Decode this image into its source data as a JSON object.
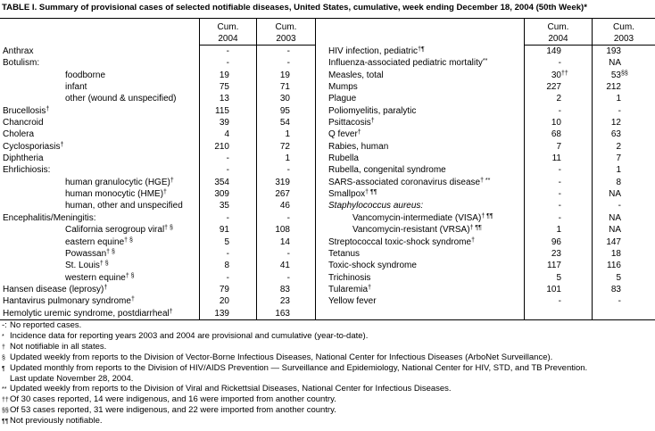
{
  "title": "TABLE I. Summary of provisional cases of selected notifiable diseases, United States, cumulative, week ending December 18, 2004 (50th Week)*",
  "header": {
    "cum": "Cum.",
    "y2004": "2004",
    "y2003": "2003"
  },
  "table": {
    "left_rows": [
      {
        "name": "Anthrax",
        "v04": "-",
        "v03": "-"
      },
      {
        "name": "Botulism:",
        "v04": "-",
        "v03": "-"
      },
      {
        "name": "foodborne",
        "indent": 1,
        "v04": "19",
        "v03": "19"
      },
      {
        "name": "infant",
        "indent": 1,
        "v04": "75",
        "v03": "71"
      },
      {
        "name": "other (wound & unspecified)",
        "indent": 1,
        "v04": "13",
        "v03": "30"
      },
      {
        "name": "Brucellosis",
        "sup": "†",
        "v04": "115",
        "v03": "95"
      },
      {
        "name": "Chancroid",
        "v04": "39",
        "v03": "54"
      },
      {
        "name": "Cholera",
        "v04": "4",
        "v03": "1"
      },
      {
        "name": "Cyclosporiasis",
        "sup": "†",
        "v04": "210",
        "v03": "72"
      },
      {
        "name": "Diphtheria",
        "v04": "-",
        "v03": "1"
      },
      {
        "name": "Ehrlichiosis:",
        "v04": "-",
        "v03": "-"
      },
      {
        "name": "human granulocytic (HGE)",
        "sup": "†",
        "indent": 1,
        "v04": "354",
        "v03": "319"
      },
      {
        "name": "human monocytic (HME)",
        "sup": "†",
        "indent": 1,
        "v04": "309",
        "v03": "267"
      },
      {
        "name": "human, other and unspecified",
        "indent": 1,
        "v04": "35",
        "v03": "46"
      },
      {
        "name": "Encephalitis/Meningitis:",
        "v04": "-",
        "v03": "-"
      },
      {
        "name": "California serogroup viral",
        "sup": "† §",
        "indent": 1,
        "v04": "91",
        "v03": "108"
      },
      {
        "name": "eastern equine",
        "sup": "† §",
        "indent": 1,
        "v04": "5",
        "v03": "14"
      },
      {
        "name": "Powassan",
        "sup": "† §",
        "indent": 1,
        "v04": "-",
        "v03": "-"
      },
      {
        "name": "St. Louis",
        "sup": "† §",
        "indent": 1,
        "v04": "8",
        "v03": "41"
      },
      {
        "name": "western equine",
        "sup": "† §",
        "indent": 1,
        "v04": "-",
        "v03": "-"
      },
      {
        "name": "Hansen disease (leprosy)",
        "sup": "†",
        "v04": "79",
        "v03": "83"
      },
      {
        "name": "Hantavirus pulmonary syndrome",
        "sup": "†",
        "v04": "20",
        "v03": "23"
      },
      {
        "name": "Hemolytic uremic syndrome, postdiarrheal",
        "sup": "†",
        "v04": "139",
        "v03": "163"
      }
    ],
    "right_rows": [
      {
        "name": "HIV infection, pediatric",
        "sup": "†¶",
        "v04": "149",
        "v03": "193"
      },
      {
        "name": "Influenza-associated pediatric mortality",
        "sup": "**",
        "v04": "-",
        "v03": "NA"
      },
      {
        "name": "Measles, total",
        "v04": "30",
        "v04s": "††",
        "v03": "53",
        "v03s": "§§"
      },
      {
        "name": "Mumps",
        "v04": "227",
        "v03": "212"
      },
      {
        "name": "Plague",
        "v04": "2",
        "v03": "1"
      },
      {
        "name": "Poliomyelitis, paralytic",
        "v04": "-",
        "v03": "-"
      },
      {
        "name": "Psittacosis",
        "sup": "†",
        "v04": "10",
        "v03": "12"
      },
      {
        "name": "Q fever",
        "sup": "†",
        "v04": "68",
        "v03": "63"
      },
      {
        "name": "Rabies, human",
        "v04": "7",
        "v03": "2"
      },
      {
        "name": "Rubella",
        "v04": "11",
        "v03": "7"
      },
      {
        "name": "Rubella, congenital syndrome",
        "v04": "-",
        "v03": "1"
      },
      {
        "name": "SARS-associated coronavirus disease",
        "sup": "† **",
        "v04": "-",
        "v03": "8"
      },
      {
        "name": "Smallpox",
        "sup": "† ¶¶",
        "v04": "-",
        "v03": "NA"
      },
      {
        "name": "Staphylococcus aureus:",
        "italic": true,
        "v04": "-",
        "v03": "-"
      },
      {
        "name": "Vancomycin-intermediate (VISA)",
        "sup": "† ¶¶",
        "indent": 1,
        "v04": "-",
        "v03": "NA"
      },
      {
        "name": "Vancomycin-resistant (VRSA)",
        "sup": "† ¶¶",
        "indent": 1,
        "v04": "1",
        "v03": "NA"
      },
      {
        "name": "Streptococcal toxic-shock syndrome",
        "sup": "†",
        "v04": "96",
        "v03": "147"
      },
      {
        "name": "Tetanus",
        "v04": "23",
        "v03": "18"
      },
      {
        "name": "Toxic-shock syndrome",
        "v04": "117",
        "v03": "116"
      },
      {
        "name": "Trichinosis",
        "v04": "5",
        "v03": "5"
      },
      {
        "name": "Tularemia",
        "sup": "†",
        "v04": "101",
        "v03": "83"
      },
      {
        "name": "Yellow fever",
        "v04": "-",
        "v03": "-"
      },
      {
        "name": "",
        "v04": "",
        "v03": ""
      }
    ]
  },
  "footnotes": [
    {
      "sym": "-:",
      "raised": false,
      "text": "No reported cases."
    },
    {
      "sym": "*",
      "raised": true,
      "text": "Incidence data for reporting years 2003 and 2004 are provisional and cumulative (year-to-date)."
    },
    {
      "sym": "†",
      "raised": true,
      "text": "Not notifiable in all states."
    },
    {
      "sym": "§",
      "raised": true,
      "text": "Updated weekly from reports to the Division of Vector-Borne Infectious Diseases, National Center for Infectious Diseases (ArboNet Surveillance)."
    },
    {
      "sym": "¶",
      "raised": true,
      "text": "Updated monthly from reports to the Division of HIV/AIDS Prevention — Surveillance and Epidemiology, National Center for HIV, STD, and TB Prevention."
    },
    {
      "sym": "",
      "raised": false,
      "text": "Last update November 28, 2004."
    },
    {
      "sym": "**",
      "raised": true,
      "text": "Updated weekly from reports to the Division of Viral and Rickettsial Diseases, National Center for Infectious Diseases."
    },
    {
      "sym": "††",
      "raised": true,
      "text": "Of 30 cases reported, 14 were indigenous, and 16 were imported from another country."
    },
    {
      "sym": "§§",
      "raised": true,
      "text": "Of 53 cases reported, 31 were indigenous, and 22 were imported from another country."
    },
    {
      "sym": "¶¶",
      "raised": true,
      "text": "Not previously notifiable."
    }
  ]
}
